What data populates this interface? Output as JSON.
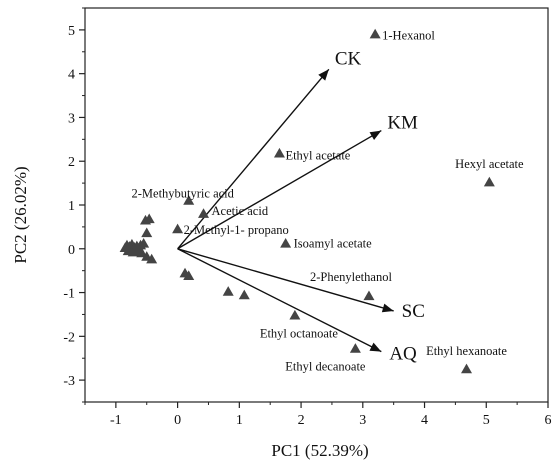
{
  "chart_data": {
    "type": "scatter",
    "subtype": "pca-biplot",
    "title": "",
    "xlabel": "PC1 (52.39%)",
    "ylabel": "PC2 (26.02%)",
    "xlim": [
      -1.5,
      6
    ],
    "ylim": [
      -3.5,
      5.5
    ],
    "x_ticks": [
      -1,
      0,
      1,
      2,
      3,
      4,
      5,
      6
    ],
    "y_ticks": [
      -3,
      -2,
      -1,
      0,
      1,
      2,
      3,
      4,
      5
    ],
    "grid": false,
    "legend": "none",
    "colors": {
      "marker": "#444444",
      "vector": "#111111",
      "axis": "#222222",
      "text": "#111111"
    },
    "labeled_points": [
      {
        "label": "1-Hexanol",
        "x": 3.2,
        "y": 4.9
      },
      {
        "label": "Hexyl acetate",
        "x": 5.05,
        "y": 1.52
      },
      {
        "label": "Ethyl acetate",
        "x": 1.65,
        "y": 2.18
      },
      {
        "label": "2-Methybutyric acid",
        "x": 0.18,
        "y": 1.1
      },
      {
        "label": "Acetic acid",
        "x": 0.42,
        "y": 0.8
      },
      {
        "label": "2-Methyl-1- propano",
        "x": 0.0,
        "y": 0.45
      },
      {
        "label": "Isoamyl acetate",
        "x": 1.75,
        "y": 0.12
      },
      {
        "label": "2-Phenylethanol",
        "x": 3.1,
        "y": -1.08
      },
      {
        "label": "Ethyl octanoate",
        "x": 1.9,
        "y": -1.52
      },
      {
        "label": "Ethyl decanoate",
        "x": 2.88,
        "y": -2.28
      },
      {
        "label": "Ethyl hexanoate",
        "x": 4.68,
        "y": -2.75
      }
    ],
    "unlabeled_points": [
      {
        "x": -0.85,
        "y": 0.02
      },
      {
        "x": -0.82,
        "y": 0.08
      },
      {
        "x": -0.8,
        "y": -0.05
      },
      {
        "x": -0.78,
        "y": 0.05
      },
      {
        "x": -0.76,
        "y": 0.0
      },
      {
        "x": -0.74,
        "y": 0.1
      },
      {
        "x": -0.72,
        "y": -0.08
      },
      {
        "x": -0.7,
        "y": 0.03
      },
      {
        "x": -0.68,
        "y": -0.03
      },
      {
        "x": -0.66,
        "y": 0.06
      },
      {
        "x": -0.64,
        "y": -0.06
      },
      {
        "x": -0.62,
        "y": 0.0
      },
      {
        "x": -0.6,
        "y": 0.08
      },
      {
        "x": -0.58,
        "y": -0.1
      },
      {
        "x": -0.52,
        "y": 0.65
      },
      {
        "x": -0.46,
        "y": 0.68
      },
      {
        "x": -0.5,
        "y": 0.36
      },
      {
        "x": -0.55,
        "y": 0.12
      },
      {
        "x": -0.5,
        "y": -0.18
      },
      {
        "x": -0.42,
        "y": -0.24
      },
      {
        "x": 0.12,
        "y": -0.56
      },
      {
        "x": 0.18,
        "y": -0.62
      },
      {
        "x": 0.82,
        "y": -0.98
      },
      {
        "x": 1.08,
        "y": -1.06
      }
    ],
    "vectors": [
      {
        "name": "CK",
        "x": 2.45,
        "y": 4.1
      },
      {
        "name": "KM",
        "x": 3.3,
        "y": 2.7
      },
      {
        "name": "SC",
        "x": 3.5,
        "y": -1.42
      },
      {
        "name": "AQ",
        "x": 3.3,
        "y": -2.35
      }
    ]
  }
}
